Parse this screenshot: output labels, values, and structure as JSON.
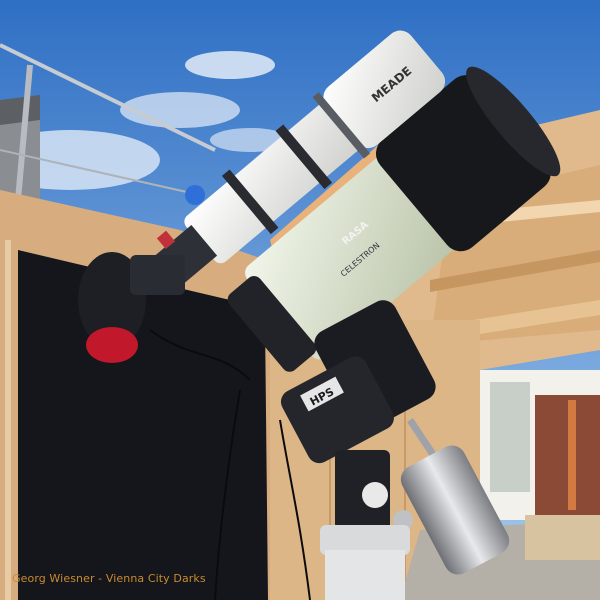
{
  "photo": {
    "credit": "Georg Wiesner - Vienna City Darks",
    "brand_refractor": "MEADE",
    "brand_sct": "CELESTRON",
    "sct_label": "RASA",
    "mount_label": "HPS"
  },
  "colors": {
    "sky_top": "#2f6fc4",
    "sky_bottom": "#9cc6ea",
    "wood": "#e0b98c",
    "wood_dark": "#c18f5e",
    "screen": "#14161c",
    "telescope_white": "#f2f2f0",
    "telescope_black": "#17181c",
    "credit_text": "#c98a2e"
  }
}
